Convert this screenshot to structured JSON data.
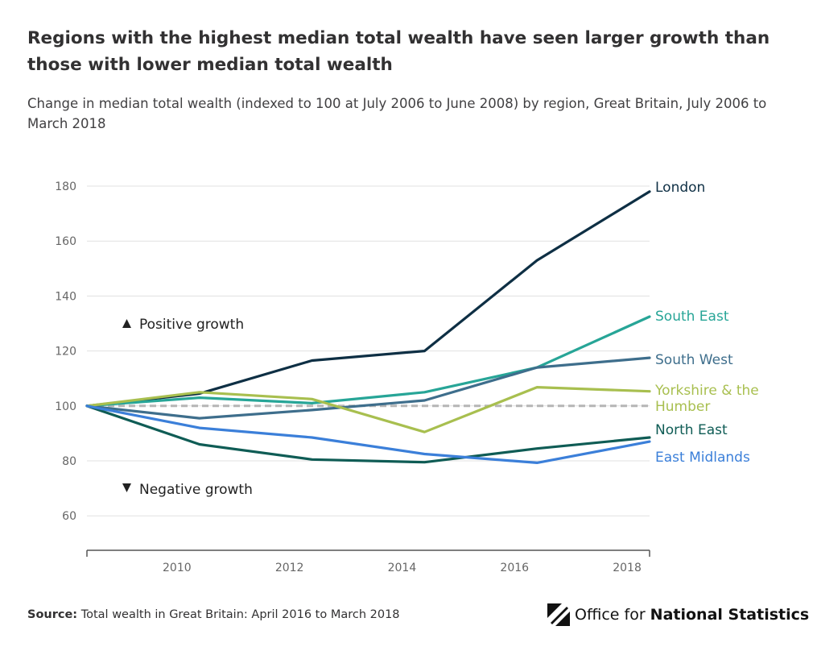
{
  "title": "Regions with the highest median total wealth have seen larger growth than those with lower median total wealth",
  "subtitle": "Change in median total wealth (indexed to 100 at July 2006 to June 2008) by region, Great Britain, July 2006 to March 2018",
  "source_label": "Source:",
  "source_text": " Total wealth in Great Britain: April 2016 to March 2018",
  "logo_prefix": "Office for ",
  "logo_bold": "National Statistics",
  "annotations": {
    "positive": "Positive growth",
    "negative": "Negative growth"
  },
  "chart_data": {
    "type": "line",
    "title": "Regions with the highest median total wealth have seen larger growth than those with lower median total wealth",
    "subtitle": "Change in median total wealth (indexed to 100 at July 2006 to June 2008) by region, Great Britain, July 2006 to March 2018",
    "xlabel": "",
    "ylabel": "",
    "x": [
      2008.4,
      2010.4,
      2012.4,
      2014.4,
      2016.4,
      2018.4
    ],
    "xlim": [
      2008.4,
      2018.4
    ],
    "xticks": [
      2010,
      2012,
      2014,
      2016,
      2018
    ],
    "ylim": [
      50,
      185
    ],
    "yticks": [
      60,
      80,
      100,
      120,
      140,
      160,
      180
    ],
    "grid": true,
    "baseline": 100,
    "legend": "direct labels at right end of lines",
    "series": [
      {
        "name": "London",
        "color": "#0e2f44",
        "values": [
          100,
          104.5,
          116.5,
          120,
          153,
          178
        ]
      },
      {
        "name": "South East",
        "color": "#27a597",
        "values": [
          100,
          103,
          101,
          105,
          114,
          132.5
        ]
      },
      {
        "name": "South West",
        "color": "#3e6e8c",
        "values": [
          100,
          95.5,
          98.5,
          102,
          114,
          117.5
        ]
      },
      {
        "name": "Yorkshire & the Humber",
        "color": "#a8bf4f",
        "values": [
          100,
          105,
          102.5,
          90.5,
          106.8,
          105.3
        ]
      },
      {
        "name": "North East",
        "color": "#0f5c55",
        "values": [
          100,
          86,
          80.5,
          79.5,
          84.5,
          88.5
        ]
      },
      {
        "name": "East Midlands",
        "color": "#3b7fd9",
        "values": [
          100,
          92,
          88.5,
          82.5,
          79.3,
          87
        ]
      }
    ]
  }
}
